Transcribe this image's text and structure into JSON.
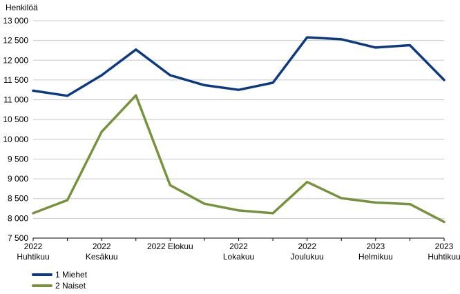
{
  "chart_data": {
    "type": "line",
    "ylabel": "Henkilöä",
    "ylim": [
      7500,
      13000
    ],
    "yticks": [
      7500,
      8000,
      8500,
      9000,
      9500,
      10000,
      10500,
      11000,
      11500,
      12000,
      12500,
      13000
    ],
    "ytick_labels": [
      "7 500",
      "8 000",
      "8 500",
      "9 000",
      "9 500",
      "10 000",
      "10 500",
      "11 000",
      "11 500",
      "12 000",
      "12 500",
      "13 000"
    ],
    "x": [
      "2022M04",
      "2022M05",
      "2022M06",
      "2022M07",
      "2022M08",
      "2022M09",
      "2022M10",
      "2022M11",
      "2022M12",
      "2023M01",
      "2023M02",
      "2023M03",
      "2023M04"
    ],
    "x_tick_labels": [
      {
        "index": 0,
        "lines": [
          "2022",
          "Huhtikuu"
        ]
      },
      {
        "index": 2,
        "lines": [
          "2022",
          "Kesäkuu"
        ]
      },
      {
        "index": 4,
        "lines": [
          "2022 Elokuu"
        ]
      },
      {
        "index": 6,
        "lines": [
          "2022",
          "Lokakuu"
        ]
      },
      {
        "index": 8,
        "lines": [
          "2022",
          "Joulukuu"
        ]
      },
      {
        "index": 10,
        "lines": [
          "2023",
          "Helmikuu"
        ]
      },
      {
        "index": 12,
        "lines": [
          "2023",
          "Huhtikuu"
        ]
      }
    ],
    "grid": true,
    "legend_position": "bottom-left",
    "series": [
      {
        "name": "1 Miehet",
        "color": "#0b3a82",
        "values": [
          11230,
          11100,
          11620,
          12270,
          11620,
          11370,
          11250,
          11430,
          12580,
          12530,
          12320,
          12380,
          11500
        ]
      },
      {
        "name": "2 Naiset",
        "color": "#76923c",
        "values": [
          8130,
          8460,
          10190,
          11110,
          8840,
          8370,
          8200,
          8130,
          8920,
          8510,
          8400,
          8360,
          7910
        ]
      }
    ]
  }
}
